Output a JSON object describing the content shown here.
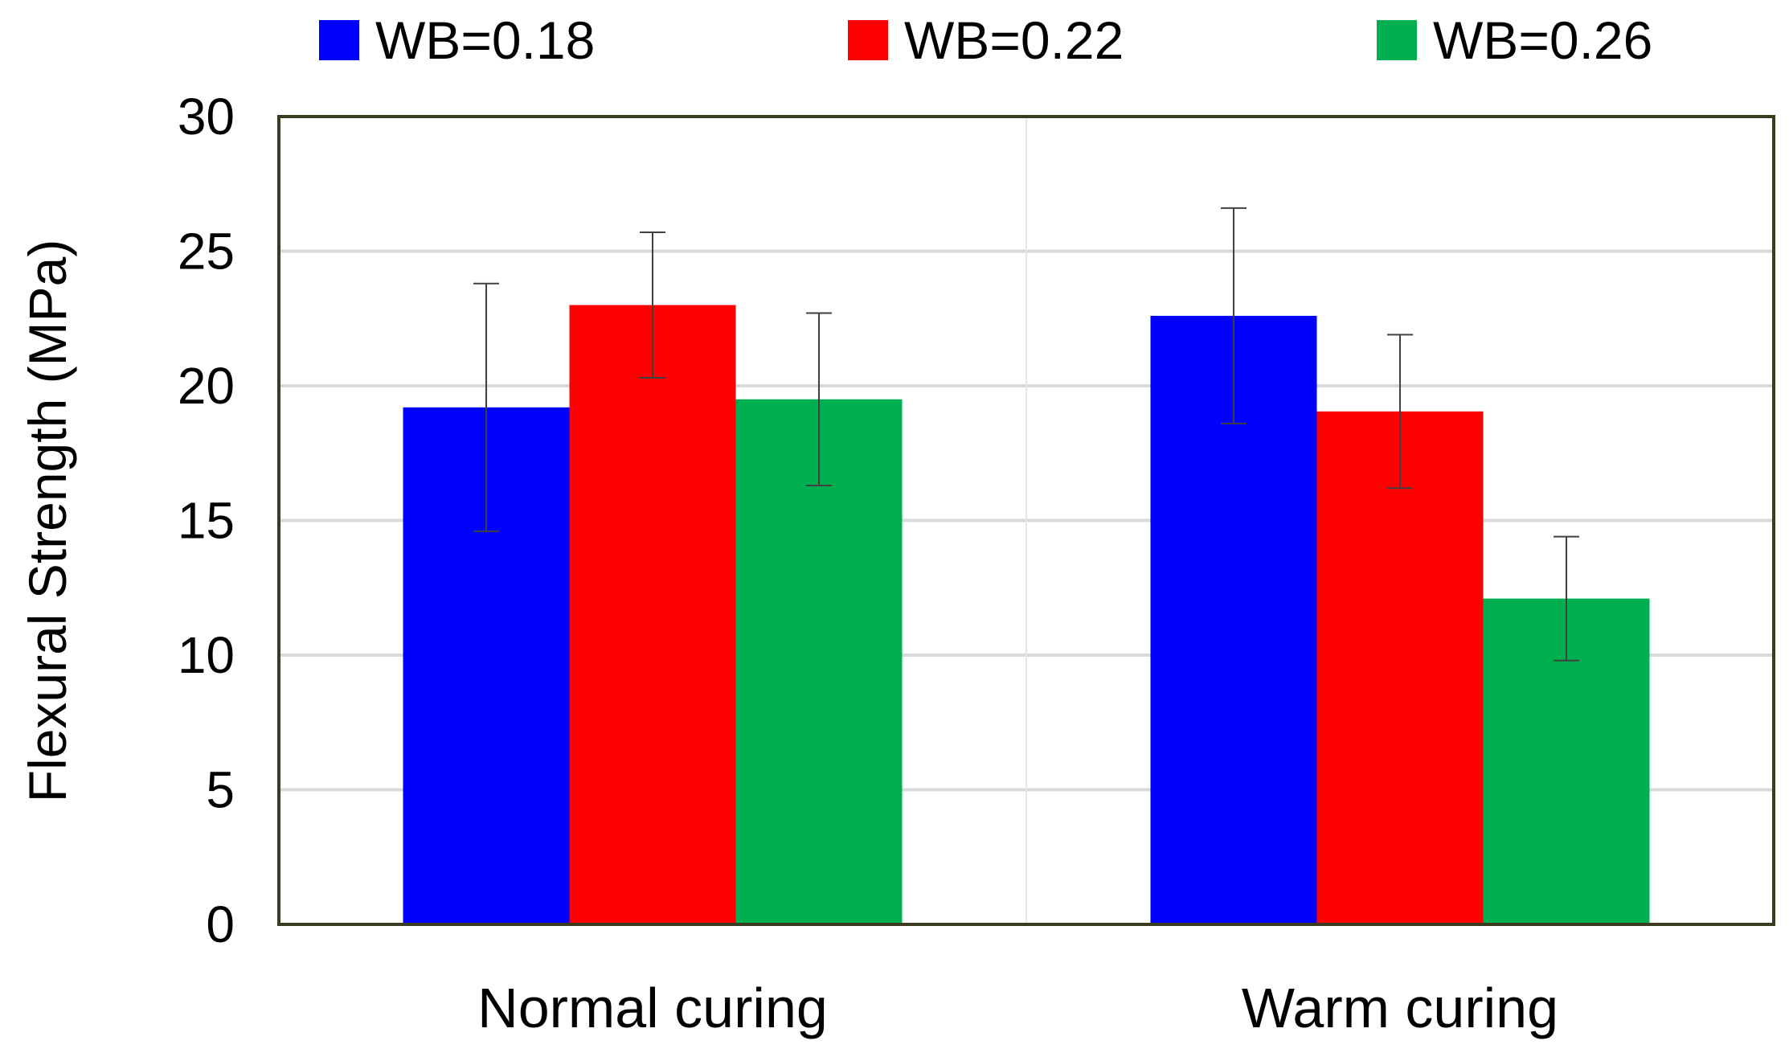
{
  "chart_data": {
    "type": "bar",
    "categories": [
      "Normal curing",
      "Warm curing"
    ],
    "series": [
      {
        "name": "WB=0.18",
        "color": "#0000ff",
        "values": [
          19.2,
          22.6
        ],
        "error": [
          4.6,
          4.0
        ]
      },
      {
        "name": "WB=0.22",
        "color": "#ff0000",
        "values": [
          23.0,
          19.05
        ],
        "error": [
          2.7,
          2.85
        ]
      },
      {
        "name": "WB=0.26",
        "color": "#00b050",
        "values": [
          19.5,
          12.1
        ],
        "error": [
          3.2,
          2.3
        ]
      }
    ],
    "title": "",
    "xlabel": "",
    "ylabel": "Flexural Strength (MPa)",
    "ylim": [
      0,
      30
    ],
    "yticks": [
      "0",
      "5",
      "10",
      "15",
      "20",
      "25",
      "30"
    ],
    "grid": true,
    "legend_position": "top"
  }
}
